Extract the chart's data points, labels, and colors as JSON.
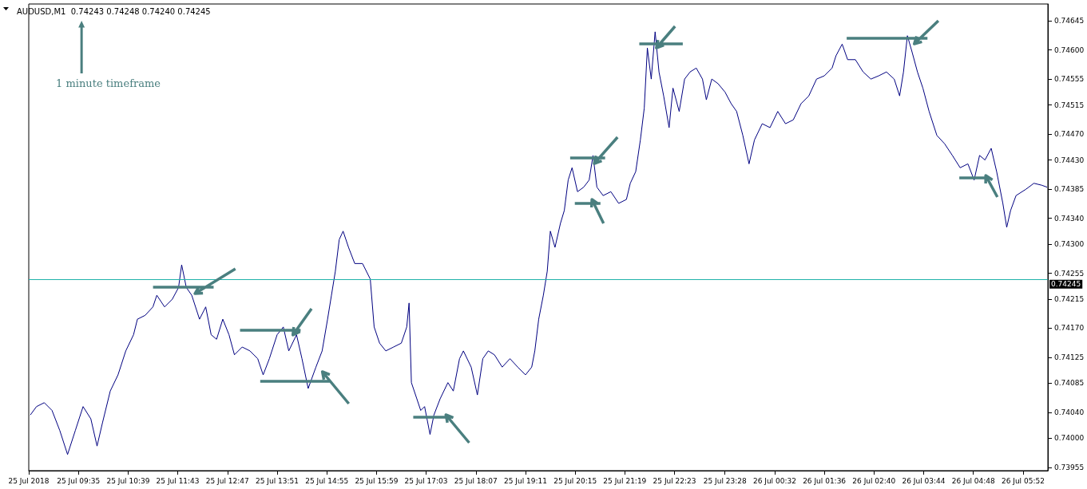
{
  "chart_data": {
    "type": "line",
    "title": "AUDUSD,M1  0.74243 0.74248 0.74240 0.74245",
    "annotations": [
      "1 minute timeframe"
    ],
    "color": "#000080",
    "marker": "none",
    "line_style": "solid",
    "grid": false,
    "x": [
      "2018-07-25T08:33",
      "2018-07-25T08:41",
      "2018-07-25T08:51",
      "2018-07-25T09:01",
      "2018-07-25T09:11",
      "2018-07-25T09:21",
      "2018-07-25T09:31",
      "2018-07-25T09:41",
      "2018-07-25T09:51",
      "2018-07-25T09:59",
      "2018-07-25T10:06",
      "2018-07-25T10:16",
      "2018-07-25T10:26",
      "2018-07-25T10:36",
      "2018-07-25T10:46",
      "2018-07-25T10:51",
      "2018-07-25T11:01",
      "2018-07-25T11:11",
      "2018-07-25T11:16",
      "2018-07-25T11:26",
      "2018-07-25T11:36",
      "2018-07-25T11:44",
      "2018-07-25T11:48",
      "2018-07-25T11:54",
      "2018-07-25T12:01",
      "2018-07-25T12:11",
      "2018-07-25T12:19",
      "2018-07-25T12:26",
      "2018-07-25T12:33",
      "2018-07-25T12:41",
      "2018-07-25T12:49",
      "2018-07-25T12:56",
      "2018-07-25T13:06",
      "2018-07-25T13:16",
      "2018-07-25T13:26",
      "2018-07-25T13:33",
      "2018-07-25T13:41",
      "2018-07-25T13:51",
      "2018-07-25T13:59",
      "2018-07-25T14:06",
      "2018-07-25T14:16",
      "2018-07-25T14:23",
      "2018-07-25T14:31",
      "2018-07-25T14:41",
      "2018-07-25T14:49",
      "2018-07-25T14:56",
      "2018-07-25T15:01",
      "2018-07-25T15:06",
      "2018-07-25T15:11",
      "2018-07-25T15:16",
      "2018-07-25T15:23",
      "2018-07-25T15:31",
      "2018-07-25T15:41",
      "2018-07-25T15:51",
      "2018-07-25T15:56",
      "2018-07-25T16:03",
      "2018-07-25T16:11",
      "2018-07-25T16:21",
      "2018-07-25T16:31",
      "2018-07-25T16:38",
      "2018-07-25T16:41",
      "2018-07-25T16:44",
      "2018-07-25T16:51",
      "2018-07-25T16:56",
      "2018-07-25T17:01",
      "2018-07-25T17:08",
      "2018-07-25T17:13",
      "2018-07-25T17:21",
      "2018-07-25T17:31",
      "2018-07-25T17:38",
      "2018-07-25T17:46",
      "2018-07-25T17:51",
      "2018-07-25T18:01",
      "2018-07-25T18:09",
      "2018-07-25T18:16",
      "2018-07-25T18:23",
      "2018-07-25T18:31",
      "2018-07-25T18:41",
      "2018-07-25T18:51",
      "2018-07-25T19:01",
      "2018-07-25T19:11",
      "2018-07-25T19:19",
      "2018-07-25T19:23",
      "2018-07-25T19:28",
      "2018-07-25T19:34",
      "2018-07-25T19:39",
      "2018-07-25T19:43",
      "2018-07-25T19:49",
      "2018-07-25T19:56",
      "2018-07-25T20:01",
      "2018-07-25T20:06",
      "2018-07-25T20:11",
      "2018-07-25T20:18",
      "2018-07-25T20:26",
      "2018-07-25T20:33",
      "2018-07-25T20:38",
      "2018-07-25T20:43",
      "2018-07-25T20:51",
      "2018-07-25T21:01",
      "2018-07-25T21:11",
      "2018-07-25T21:21",
      "2018-07-25T21:26",
      "2018-07-25T21:33",
      "2018-07-25T21:39",
      "2018-07-25T21:44",
      "2018-07-25T21:48",
      "2018-07-25T21:53",
      "2018-07-25T21:58",
      "2018-07-25T22:03",
      "2018-07-25T22:09",
      "2018-07-25T22:16",
      "2018-07-25T22:21",
      "2018-07-25T22:29",
      "2018-07-25T22:36",
      "2018-07-25T22:43",
      "2018-07-25T22:51",
      "2018-07-25T22:59",
      "2018-07-25T23:04",
      "2018-07-25T23:11",
      "2018-07-25T23:19",
      "2018-07-25T23:28",
      "2018-07-25T23:36",
      "2018-07-25T23:43",
      "2018-07-25T23:51",
      "2018-07-25T23:59",
      "2018-07-26T00:06",
      "2018-07-26T00:16",
      "2018-07-26T00:26",
      "2018-07-26T00:36",
      "2018-07-26T00:46",
      "2018-07-26T00:56",
      "2018-07-26T01:06",
      "2018-07-26T01:16",
      "2018-07-26T01:26",
      "2018-07-26T01:36",
      "2018-07-26T01:46",
      "2018-07-26T01:51",
      "2018-07-26T01:59",
      "2018-07-26T02:06",
      "2018-07-26T02:16",
      "2018-07-26T02:26",
      "2018-07-26T02:36",
      "2018-07-26T02:46",
      "2018-07-26T02:56",
      "2018-07-26T03:06",
      "2018-07-26T03:13",
      "2018-07-26T03:18",
      "2018-07-26T03:23",
      "2018-07-26T03:29",
      "2018-07-26T03:36",
      "2018-07-26T03:43",
      "2018-07-26T03:51",
      "2018-07-26T04:01",
      "2018-07-26T04:11",
      "2018-07-26T04:21",
      "2018-07-26T04:31",
      "2018-07-26T04:41",
      "2018-07-26T04:49",
      "2018-07-26T04:56",
      "2018-07-26T05:03",
      "2018-07-26T05:11",
      "2018-07-26T05:18",
      "2018-07-26T05:26",
      "2018-07-26T05:31",
      "2018-07-26T05:36",
      "2018-07-26T05:43",
      "2018-07-26T05:56",
      "2018-07-26T06:06",
      "2018-07-26T06:16",
      "2018-07-26T06:23"
    ],
    "values": [
      0.74036,
      0.74049,
      0.74055,
      0.74043,
      0.74012,
      0.73975,
      0.74012,
      0.74049,
      0.7403,
      0.73988,
      0.74024,
      0.74073,
      0.74098,
      0.74135,
      0.7416,
      0.74184,
      0.7419,
      0.74203,
      0.74221,
      0.74203,
      0.74215,
      0.74233,
      0.74268,
      0.74233,
      0.74221,
      0.74184,
      0.74203,
      0.7416,
      0.74153,
      0.74184,
      0.7416,
      0.74129,
      0.74141,
      0.74135,
      0.74123,
      0.74098,
      0.74123,
      0.7416,
      0.74172,
      0.74135,
      0.7416,
      0.74123,
      0.74077,
      0.7411,
      0.74135,
      0.74184,
      0.74221,
      0.74258,
      0.74307,
      0.7432,
      0.74295,
      0.7427,
      0.7427,
      0.74246,
      0.74172,
      0.74147,
      0.74135,
      0.74141,
      0.74147,
      0.74172,
      0.74209,
      0.74086,
      0.74061,
      0.74043,
      0.74049,
      0.74006,
      0.74036,
      0.74061,
      0.74086,
      0.74073,
      0.74123,
      0.74135,
      0.7411,
      0.74067,
      0.74123,
      0.74135,
      0.74129,
      0.7411,
      0.74123,
      0.7411,
      0.74098,
      0.7411,
      0.74135,
      0.74184,
      0.74221,
      0.74258,
      0.7432,
      0.74295,
      0.74332,
      0.74352,
      0.74399,
      0.74418,
      0.74381,
      0.74388,
      0.74399,
      0.74437,
      0.74388,
      0.74375,
      0.74381,
      0.74363,
      0.74369,
      0.74394,
      0.74412,
      0.74461,
      0.7451,
      0.74603,
      0.74555,
      0.74628,
      0.74566,
      0.74529,
      0.7448,
      0.74541,
      0.74505,
      0.74555,
      0.74566,
      0.74572,
      0.74555,
      0.74523,
      0.74555,
      0.74548,
      0.74535,
      0.74517,
      0.74505,
      0.74468,
      0.74424,
      0.74461,
      0.74486,
      0.7448,
      0.74505,
      0.74486,
      0.74492,
      0.74517,
      0.74529,
      0.74555,
      0.7456,
      0.74572,
      0.74591,
      0.74609,
      0.74585,
      0.74585,
      0.74566,
      0.74555,
      0.7456,
      0.74566,
      0.74555,
      0.74529,
      0.74566,
      0.74622,
      0.74597,
      0.74566,
      0.74541,
      0.74505,
      0.74468,
      0.74455,
      0.74437,
      0.74418,
      0.74424,
      0.74399,
      0.74437,
      0.7443,
      0.74448,
      0.74412,
      0.74363,
      0.74326,
      0.74352,
      0.74375,
      0.74385,
      0.74394,
      0.74391,
      0.74388
    ],
    "xlim": [
      "2018-07-25T08:31",
      "2018-07-26T06:24"
    ],
    "xticks": [
      {
        "value": "2018-07-25T08:31",
        "label": "25 Jul 2018"
      },
      {
        "value": "2018-07-25T09:35",
        "label": "25 Jul 09:35"
      },
      {
        "value": "2018-07-25T10:39",
        "label": "25 Jul 10:39"
      },
      {
        "value": "2018-07-25T11:43",
        "label": "25 Jul 11:43"
      },
      {
        "value": "2018-07-25T12:47",
        "label": "25 Jul 12:47"
      },
      {
        "value": "2018-07-25T13:51",
        "label": "25 Jul 13:51"
      },
      {
        "value": "2018-07-25T14:55",
        "label": "25 Jul 14:55"
      },
      {
        "value": "2018-07-25T15:59",
        "label": "25 Jul 15:59"
      },
      {
        "value": "2018-07-25T17:03",
        "label": "25 Jul 17:03"
      },
      {
        "value": "2018-07-25T18:07",
        "label": "25 Jul 18:07"
      },
      {
        "value": "2018-07-25T19:11",
        "label": "25 Jul 19:11"
      },
      {
        "value": "2018-07-25T20:15",
        "label": "25 Jul 20:15"
      },
      {
        "value": "2018-07-25T21:19",
        "label": "25 Jul 21:19"
      },
      {
        "value": "2018-07-25T22:23",
        "label": "25 Jul 22:23"
      },
      {
        "value": "2018-07-25T23:28",
        "label": "25 Jul 23:28"
      },
      {
        "value": "2018-07-26T00:32",
        "label": "26 Jul 00:32"
      },
      {
        "value": "2018-07-26T01:36",
        "label": "26 Jul 01:36"
      },
      {
        "value": "2018-07-26T02:40",
        "label": "26 Jul 02:40"
      },
      {
        "value": "2018-07-26T03:44",
        "label": "26 Jul 03:44"
      },
      {
        "value": "2018-07-26T04:48",
        "label": "26 Jul 04:48"
      },
      {
        "value": "2018-07-26T05:52",
        "label": "26 Jul 05:52"
      }
    ],
    "ylim": [
      0.7395,
      0.74671
    ],
    "yticks": [
      {
        "value": 0.73955,
        "label": "0.73955"
      },
      {
        "value": 0.74,
        "label": "0.74000"
      },
      {
        "value": 0.7404,
        "label": "0.74040"
      },
      {
        "value": 0.74085,
        "label": "0.74085"
      },
      {
        "value": 0.74125,
        "label": "0.74125"
      },
      {
        "value": 0.7417,
        "label": "0.74170"
      },
      {
        "value": 0.74215,
        "label": "0.74215"
      },
      {
        "value": 0.74255,
        "label": "0.74255"
      },
      {
        "value": 0.743,
        "label": "0.74300"
      },
      {
        "value": 0.7434,
        "label": "0.74340"
      },
      {
        "value": 0.74385,
        "label": "0.74385"
      },
      {
        "value": 0.7443,
        "label": "0.74430"
      },
      {
        "value": 0.7447,
        "label": "0.74470"
      },
      {
        "value": 0.74515,
        "label": "0.74515"
      },
      {
        "value": 0.74555,
        "label": "0.74555"
      },
      {
        "value": 0.746,
        "label": "0.74600"
      },
      {
        "value": 0.74645,
        "label": "0.74645"
      }
    ],
    "ref_lines": [
      {
        "axis": "y",
        "value": 0.74245,
        "label": "0.74245",
        "color": "#20b2aa"
      }
    ]
  }
}
